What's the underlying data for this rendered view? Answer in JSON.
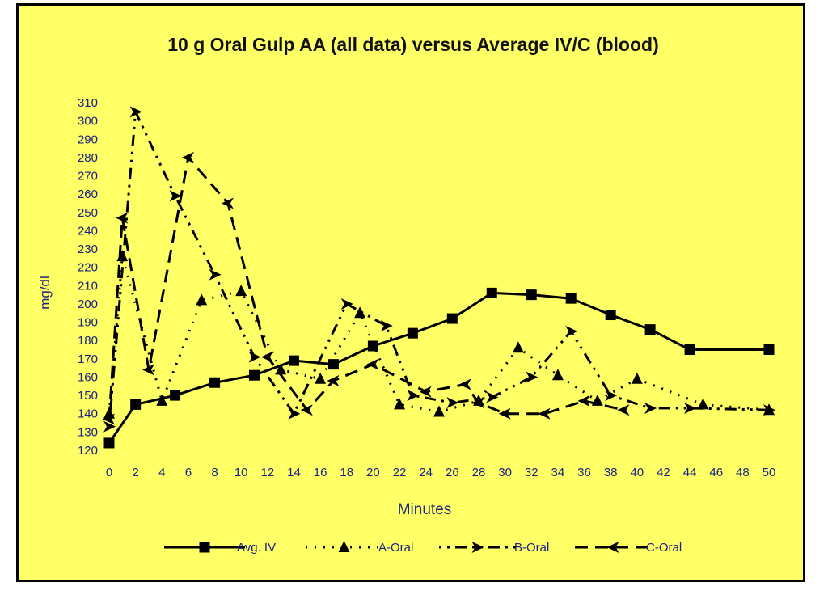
{
  "colors": {
    "background": "#ffff66",
    "ink": "#000000",
    "label": "#1a237e",
    "title": "#111111"
  },
  "chart_data": {
    "type": "line",
    "title": "10 g Oral Gulp AA (all data) versus Average IV/C (blood)",
    "xlabel": "Minutes",
    "ylabel": "mg/dl",
    "xlim": [
      0,
      50
    ],
    "ylim": [
      120,
      310
    ],
    "x_ticks": [
      "0",
      "2",
      "4",
      "6",
      "8",
      "10",
      "12",
      "14",
      "16",
      "18",
      "20",
      "22",
      "24",
      "26",
      "28",
      "30",
      "32",
      "34",
      "36",
      "38",
      "40",
      "42",
      "44",
      "46",
      "48",
      "50"
    ],
    "y_ticks": [
      "120",
      "130",
      "140",
      "150",
      "160",
      "170",
      "180",
      "190",
      "200",
      "210",
      "220",
      "230",
      "240",
      "250",
      "260",
      "270",
      "280",
      "290",
      "300",
      "310"
    ],
    "grid": false,
    "legend_position": "bottom",
    "series": [
      {
        "name": "Avg. IV",
        "marker": "square",
        "dash": "solid",
        "x": [
          0,
          2,
          5,
          8,
          11,
          14,
          17,
          20,
          23,
          26,
          29,
          32,
          35,
          38,
          41,
          44,
          50
        ],
        "y": [
          124,
          145,
          150,
          157,
          161,
          169,
          167,
          177,
          184,
          192,
          206,
          205,
          203,
          194,
          186,
          175,
          175
        ]
      },
      {
        "name": "A-Oral",
        "marker": "triangle",
        "dash": "dot",
        "x": [
          0,
          1,
          4,
          7,
          10,
          13,
          16,
          19,
          22,
          25,
          28,
          31,
          34,
          37,
          40,
          45,
          50
        ],
        "y": [
          140,
          226,
          147,
          202,
          207,
          164,
          159,
          195,
          145,
          141,
          147,
          176,
          161,
          147,
          159,
          145,
          142
        ]
      },
      {
        "name": "B-Oral",
        "marker": "arrow-right",
        "dash": "dash-dot",
        "x": [
          0,
          2,
          5,
          8,
          11,
          14,
          18,
          21,
          23,
          26,
          29,
          32,
          35,
          38,
          41,
          44,
          50
        ],
        "y": [
          133,
          305,
          259,
          216,
          171,
          140,
          200,
          188,
          150,
          146,
          149,
          160,
          185,
          150,
          143,
          143,
          142
        ]
      },
      {
        "name": "C-Oral",
        "marker": "arrow-left",
        "dash": "dash",
        "x": [
          0,
          1,
          3,
          6,
          9,
          12,
          15,
          17,
          20,
          24,
          27,
          28,
          30,
          33,
          36,
          39
        ],
        "y": [
          137,
          247,
          164,
          280,
          255,
          171,
          142,
          158,
          167,
          152,
          156,
          146,
          140,
          140,
          147,
          142
        ]
      }
    ]
  }
}
